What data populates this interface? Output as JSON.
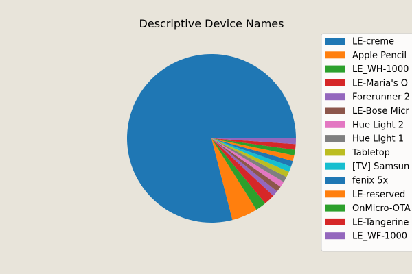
{
  "chart_data": {
    "type": "pie",
    "title": "Descriptive Device Names",
    "start_angle_deg": 0,
    "direction": "counterclockwise",
    "legend_position": "right",
    "slices": [
      {
        "label": "LE-creme",
        "value": 80.1,
        "color": "#1f77b4"
      },
      {
        "label": "Apple Pencil",
        "value": 5.0,
        "color": "#ff7f0e"
      },
      {
        "label": "LE_WH-1000",
        "value": 2.1,
        "color": "#2ca02c"
      },
      {
        "label": "LE-Maria's O",
        "value": 2.1,
        "color": "#d62728"
      },
      {
        "label": "Forerunner 2",
        "value": 1.1,
        "color": "#9467bd"
      },
      {
        "label": "LE-Bose Micr",
        "value": 1.1,
        "color": "#8c564b"
      },
      {
        "label": "Hue Light 2",
        "value": 1.1,
        "color": "#e377c2"
      },
      {
        "label": "Hue Light 1",
        "value": 1.1,
        "color": "#7f7f7f"
      },
      {
        "label": "Tabletop",
        "value": 1.1,
        "color": "#bcbd22"
      },
      {
        "label": "[TV] Samsun",
        "value": 1.1,
        "color": "#17becf"
      },
      {
        "label": "fenix 5x",
        "value": 1.1,
        "color": "#1f77b4"
      },
      {
        "label": "LE-reserved_",
        "value": 1.1,
        "color": "#ff7f0e"
      },
      {
        "label": "OnMicro-OTA",
        "value": 1.1,
        "color": "#2ca02c"
      },
      {
        "label": "LE-Tangerine",
        "value": 1.1,
        "color": "#d62728"
      },
      {
        "label": "LE_WF-1000",
        "value": 1.1,
        "color": "#9467bd"
      }
    ]
  }
}
